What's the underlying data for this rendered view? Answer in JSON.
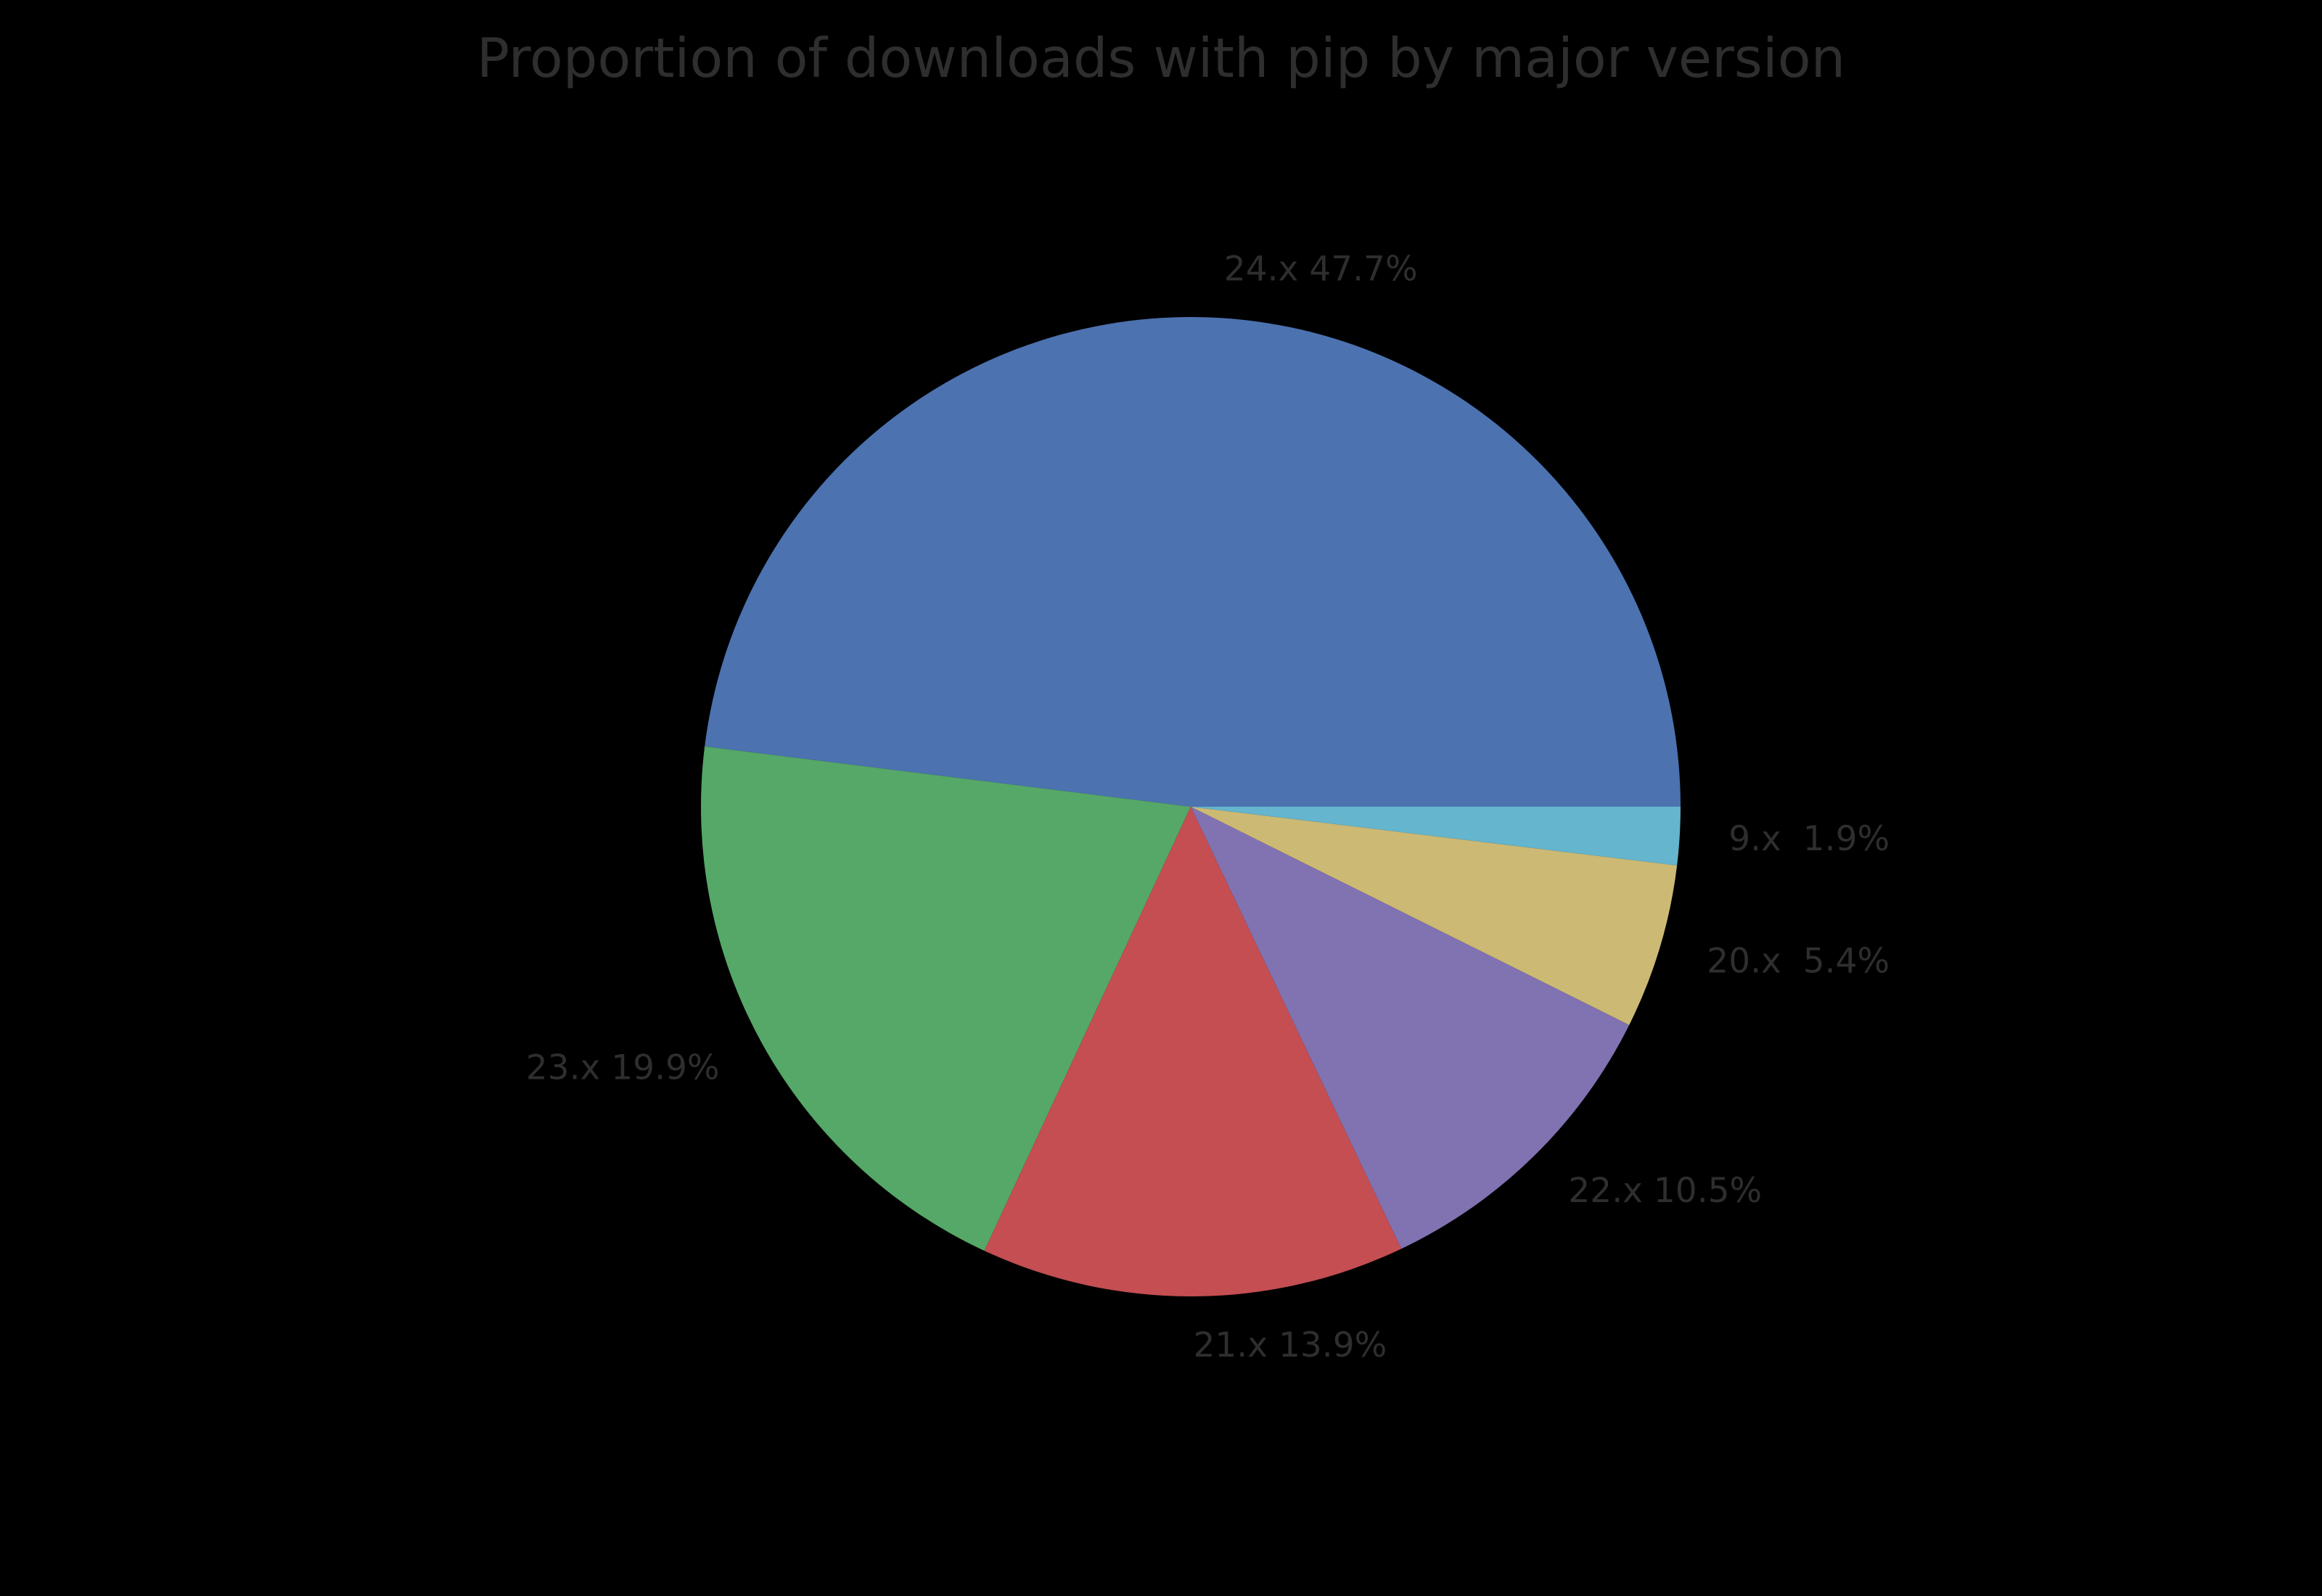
{
  "background_color": "#000000",
  "text_color": "#2e2e2e",
  "chart_data": {
    "type": "pie",
    "title": "Proportion of downloads with pip by major version",
    "legend": "none",
    "start_angle_deg": 0,
    "direction": "counterclockwise",
    "label_distance": 1.1,
    "slices": [
      {
        "label": "24.x",
        "value": 47.7,
        "pct_label": "47.7%",
        "text": "24.x 47.7%",
        "color": "#4C72B0"
      },
      {
        "label": "23.x",
        "value": 19.9,
        "pct_label": "19.9%",
        "text": "23.x 19.9%",
        "color": "#55A868"
      },
      {
        "label": "21.x",
        "value": 13.9,
        "pct_label": "13.9%",
        "text": "21.x 13.9%",
        "color": "#C44E52"
      },
      {
        "label": "22.x",
        "value": 10.5,
        "pct_label": "10.5%",
        "text": "22.x 10.5%",
        "color": "#8172B2"
      },
      {
        "label": "20.x",
        "value": 5.4,
        "pct_label": "5.4%",
        "text": "20.x  5.4%",
        "color": "#CCB974"
      },
      {
        "label": "9.x",
        "value": 1.9,
        "pct_label": "1.9%",
        "text": "9.x  1.9%",
        "color": "#64B5CD"
      }
    ]
  }
}
